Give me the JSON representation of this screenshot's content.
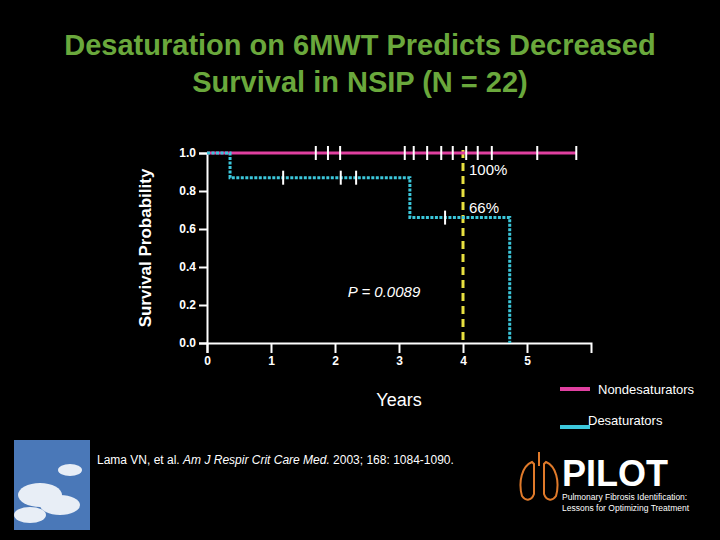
{
  "chart_data": {
    "type": "line",
    "title": "Desaturation on 6MWT Predicts Decreased Survival in NSIP (N = 22)",
    "x_label": "Years",
    "y_label": "Survival Probability",
    "xlim": [
      0,
      6
    ],
    "xticks": [
      0,
      1,
      2,
      3,
      4,
      5
    ],
    "ylim": [
      0,
      1
    ],
    "yticks": [
      {
        "value": 0,
        "label": "0.0"
      },
      0.2,
      0.4,
      0.6,
      0.8,
      {
        "value": 1,
        "label": "1.0"
      }
    ],
    "line_style": "step",
    "grid": false,
    "legend": "bottom-right",
    "series": [
      {
        "name": "Nondesaturators",
        "color": "#e040a0",
        "x": [
          0,
          5.77
        ],
        "values": [
          1,
          1
        ],
        "censored_x": [
          1.7,
          1.89,
          2.08,
          3.09,
          3.23,
          3.44,
          3.66,
          3.84,
          4.05,
          4.23,
          4.45,
          5.16,
          5.77
        ],
        "censored_values": [
          1,
          1,
          1,
          1,
          1,
          1,
          1,
          1,
          1,
          1,
          1,
          1,
          1
        ]
      },
      {
        "name": "Desaturators",
        "color": "#3cc8dc",
        "x": [
          0,
          0.36,
          3.17,
          4.73
        ],
        "values": [
          1,
          0.87,
          0.66,
          0
        ],
        "censored_x": [
          1.19,
          2.09,
          2.33,
          3.72
        ],
        "censored_values": [
          0.87,
          0.87,
          0.87,
          0.66
        ]
      }
    ],
    "vline": 4,
    "annotations": [
      "100%",
      "66%",
      "P = 0.0089"
    ]
  },
  "citation": {
    "authors": "Lama VN, et al.",
    "journal": "Am J Respir Crit Care Med.",
    "details": "2003; 168: 1084-1090."
  },
  "logo": {
    "name": "PILOT",
    "tagline": [
      "Pulmonary Fibrosis Identification:",
      "Lessons for Optimizing Treatment"
    ]
  }
}
